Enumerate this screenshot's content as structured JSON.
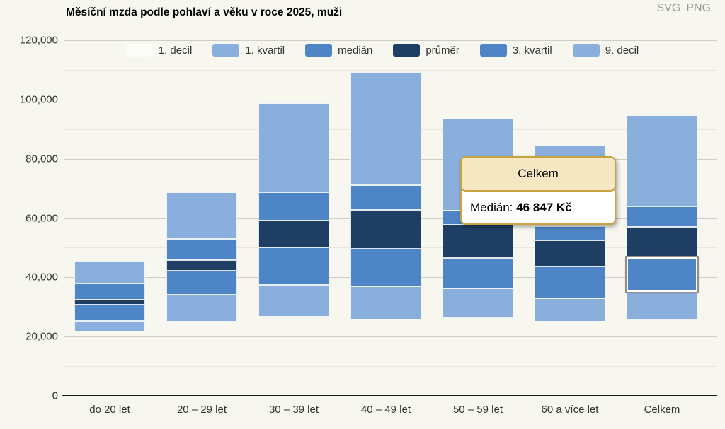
{
  "header": {
    "title": "Měsíční mzda podle pohlaví a věku v roce 2025, muži",
    "export_svg": "SVG",
    "export_png": "PNG"
  },
  "colors": {
    "background": "#f7f7f0",
    "band_light": "#8bafdd",
    "band_medium": "#4e85c6",
    "band_navy": "#1f3e63",
    "legend_decil1_swatch": "rgba(255,255,255,0.45)",
    "grid_major": "#cfcfc7",
    "grid_minor": "#e7e7df",
    "axis_line": "#1d1d1d",
    "label_text": "#333333",
    "tooltip_border": "#c8a241",
    "tooltip_header_bg": "#f4e7c2",
    "tooltip_body_bg": "#ffffff"
  },
  "legend": [
    {
      "label": "1. decil",
      "color": "rgba(255,255,255,0.45)"
    },
    {
      "label": "1. kvartil",
      "color": "#8bafdd"
    },
    {
      "label": "medián",
      "color": "#4e85c6"
    },
    {
      "label": "průměr",
      "color": "#1f3e63"
    },
    {
      "label": "3. kvartil",
      "color": "#4e85c6"
    },
    {
      "label": "9. decil",
      "color": "#8bafdd"
    }
  ],
  "chart_data": {
    "type": "bar",
    "subtype": "stacked-range-columns",
    "title": "Měsíční mzda podle pohlaví a věku v roce 2025, muži",
    "xlabel": "",
    "ylabel": "",
    "unit": "Kč",
    "categories": [
      "do 20 let",
      "20 – 29 let",
      "30 – 39 let",
      "40 – 49 let",
      "50 – 59 let",
      "60 a více let",
      "Celkem"
    ],
    "series": [
      {
        "name": "1. decil",
        "values": [
          21700,
          25000,
          26600,
          25800,
          26200,
          25000,
          25500
        ]
      },
      {
        "name": "1. kvartil",
        "values": [
          25300,
          34000,
          37400,
          37000,
          36200,
          33000,
          35000
        ]
      },
      {
        "name": "medián",
        "values": [
          30800,
          42200,
          50000,
          49700,
          46500,
          43700,
          46847
        ]
      },
      {
        "name": "průměr",
        "values": [
          32400,
          45900,
          59200,
          62800,
          57700,
          52500,
          57000
        ]
      },
      {
        "name": "3. kvartil",
        "values": [
          38000,
          53000,
          68800,
          71200,
          62400,
          57300,
          64000
        ]
      },
      {
        "name": "9. decil",
        "values": [
          45300,
          68800,
          98800,
          109300,
          93400,
          84700,
          94600
        ]
      }
    ],
    "ylim": [
      0,
      120000
    ],
    "y_tick_step": 20000,
    "y_minor_step": 10000,
    "y_tick_labels": [
      "0",
      "20,000",
      "40,000",
      "60,000",
      "80,000",
      "100,000",
      "120,000"
    ],
    "grid": true,
    "legend_position": "top-inside"
  },
  "highlight": {
    "category_index": 6,
    "band": "median"
  },
  "tooltip": {
    "title": "Celkem",
    "label": "Medián: ",
    "value": "46 847 Kč"
  }
}
